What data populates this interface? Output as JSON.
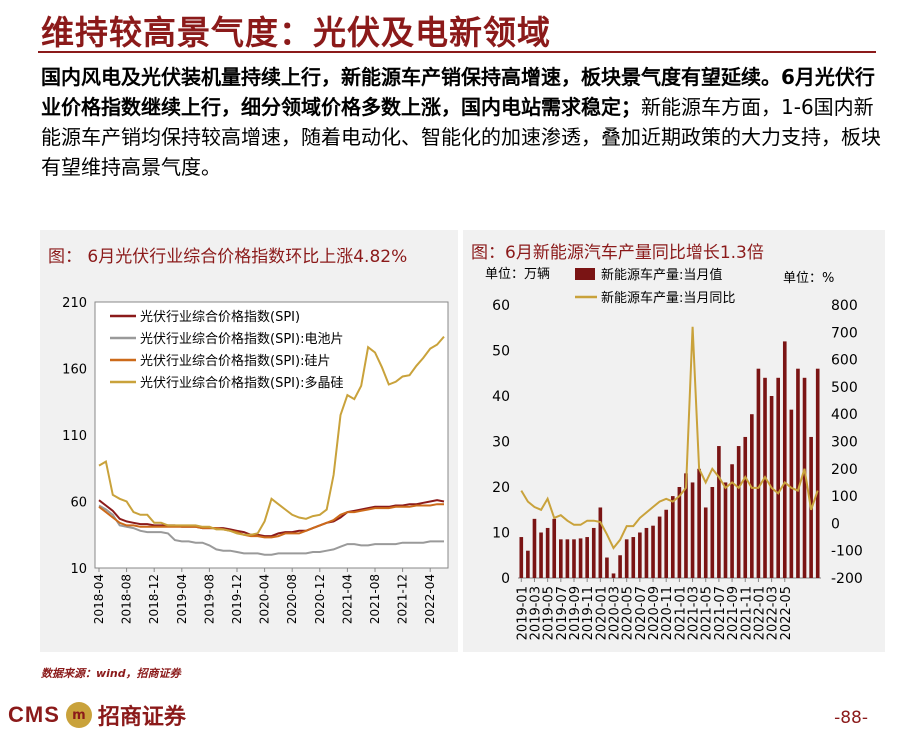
{
  "header": {
    "title": "维持较高景气度：光伏及电新领域",
    "lead_bold": "国内风电及光伏装机量持续上行，新能源车产销保持高增速，板块景气度有望延续。6月光伏行业价格指数继续上行，细分领域价格多数上涨，国内电站需求稳定；",
    "lead_normal": "新能源车方面，1-6国内新能源车产销均保持较高增速，随着电动化、智能化的加速渗透，叠加近期政策的大力支持，板块有望维持高景气度。"
  },
  "footer": {
    "source": "数据来源：wind，招商证券",
    "logo_text": "CMS",
    "logo_emblem": "m",
    "logo_name": "招商证券",
    "page_number": "-88-"
  },
  "colors": {
    "brand": "#8B1A1A",
    "gold": "#c9a23b",
    "panel_bg": "#f1f1f1"
  },
  "chart_data": [
    {
      "type": "line",
      "title": "图：   6月光伏行业综合价格指数环比上涨4.82%",
      "xlabel": "",
      "ylabel": "",
      "ylim": [
        10,
        210
      ],
      "y_ticks": [
        "210",
        "160",
        "110",
        "60",
        "10"
      ],
      "x_ticks": [
        "2018-04",
        "2018-08",
        "2018-12",
        "2019-04",
        "2019-08",
        "2019-12",
        "2020-04",
        "2020-08",
        "2020-12",
        "2021-04",
        "2021-08",
        "2021-12",
        "2022-04"
      ],
      "series": [
        {
          "name": "光伏行业综合价格指数(SPI)",
          "color": "#8B1A1A",
          "values": [
            61,
            57,
            53,
            47,
            45,
            44,
            43,
            43,
            42,
            42,
            42,
            42,
            41,
            41,
            41,
            40,
            40,
            40,
            40,
            39,
            38,
            37,
            35,
            35,
            34,
            34,
            36,
            37,
            37,
            38,
            38,
            40,
            42,
            44,
            45,
            48,
            52,
            53,
            54,
            55,
            56,
            56,
            56,
            57,
            57,
            58,
            58,
            59,
            60,
            61,
            60
          ]
        },
        {
          "name": "光伏行业综合价格指数(SPI):电池片",
          "color": "#9a9a9a",
          "values": [
            57,
            54,
            50,
            42,
            41,
            40,
            38,
            37,
            37,
            37,
            36,
            31,
            30,
            30,
            29,
            29,
            27,
            24,
            23,
            23,
            22,
            21,
            21,
            21,
            20,
            20,
            21,
            21,
            21,
            21,
            21,
            22,
            22,
            23,
            24,
            26,
            28,
            28,
            27,
            27,
            28,
            28,
            28,
            28,
            29,
            29,
            29,
            29,
            30,
            30,
            30
          ]
        },
        {
          "name": "光伏行业综合价格指数(SPI):硅片",
          "color": "#cc6a1a",
          "values": [
            56,
            52,
            48,
            44,
            42,
            42,
            41,
            41,
            41,
            41,
            41,
            41,
            41,
            41,
            41,
            40,
            40,
            40,
            39,
            38,
            37,
            35,
            34,
            34,
            33,
            33,
            34,
            36,
            36,
            36,
            38,
            40,
            42,
            44,
            46,
            50,
            52,
            52,
            53,
            54,
            55,
            55,
            55,
            56,
            56,
            56,
            57,
            57,
            57,
            58,
            58
          ]
        },
        {
          "name": "光伏行业综合价格指数(SPI):多晶硅",
          "color": "#c9a23b",
          "values": [
            87,
            90,
            65,
            62,
            60,
            52,
            50,
            50,
            44,
            44,
            42,
            42,
            42,
            42,
            42,
            41,
            41,
            39,
            39,
            38,
            36,
            35,
            35,
            36,
            45,
            62,
            58,
            54,
            50,
            48,
            47,
            49,
            50,
            54,
            80,
            125,
            140,
            137,
            147,
            176,
            172,
            161,
            148,
            150,
            154,
            155,
            162,
            168,
            175,
            178,
            184
          ]
        }
      ]
    },
    {
      "type": "bar+line",
      "title": "图：6月新能源汽车产量同比增长1.3倍",
      "unit_left": "单位：万辆",
      "unit_right": "单位：%",
      "ylim_left": [
        0,
        60
      ],
      "ylim_right": [
        -200,
        800
      ],
      "y_ticks_left": [
        "60",
        "50",
        "40",
        "30",
        "20",
        "10",
        "0"
      ],
      "y_ticks_right": [
        "800",
        "700",
        "600",
        "500",
        "400",
        "300",
        "200",
        "100",
        "0",
        "-100",
        "-200"
      ],
      "x_ticks": [
        "2019-01",
        "2019-03",
        "2019-05",
        "2019-07",
        "2019-09",
        "2019-11",
        "2020-01",
        "2020-03",
        "2020-05",
        "2020-07",
        "2020-09",
        "2020-11",
        "2021-01",
        "2021-03",
        "2021-05",
        "2021-07",
        "2021-09",
        "2021-11",
        "2022-01",
        "2022-03",
        "2022-05"
      ],
      "series": [
        {
          "name": "新能源车产量:当月值",
          "color": "#7a1414",
          "axis": "left",
          "values": [
            9,
            6,
            13,
            10,
            11,
            13,
            8.5,
            8.5,
            8.5,
            8.7,
            9,
            11,
            15.5,
            4.5,
            1,
            5,
            8.5,
            9,
            10,
            11,
            11.5,
            13.5,
            15,
            18,
            20,
            23,
            21,
            24,
            15.5,
            20,
            29,
            21,
            25,
            29,
            31,
            36,
            46,
            44,
            40,
            44,
            52,
            37,
            46,
            44,
            31,
            46
          ]
        },
        {
          "name": "新能源车产量:当月同比",
          "color": "#c9a23b",
          "axis": "right",
          "values": [
            120,
            80,
            60,
            50,
            90,
            20,
            30,
            10,
            -5,
            -5,
            10,
            10,
            5,
            -40,
            -90,
            -60,
            -10,
            -10,
            20,
            40,
            60,
            80,
            90,
            80,
            100,
            130,
            720,
            200,
            150,
            200,
            170,
            130,
            150,
            130,
            170,
            130,
            130,
            170,
            130,
            110,
            150,
            130,
            120,
            200,
            50,
            120
          ]
        }
      ]
    }
  ]
}
